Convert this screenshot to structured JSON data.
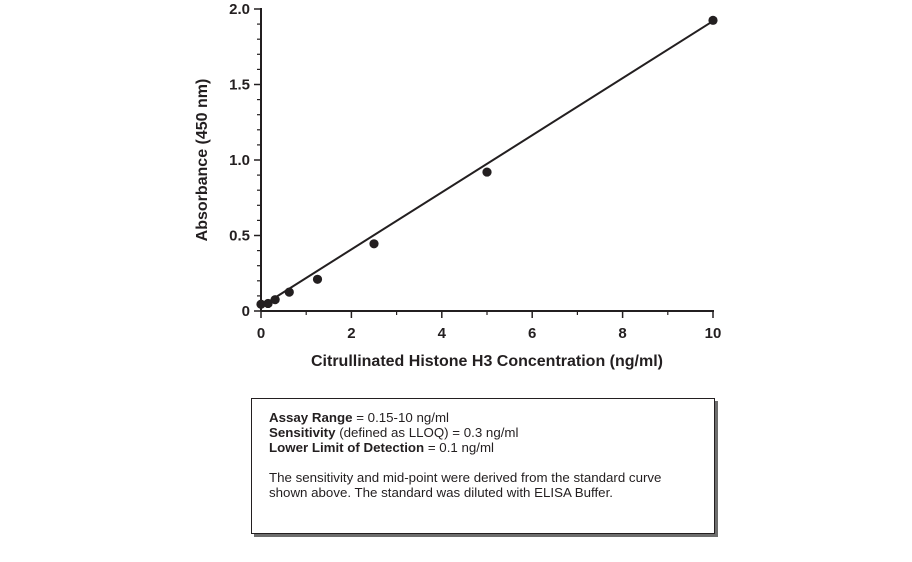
{
  "chart_data": {
    "type": "scatter",
    "xlabel": "Citrullinated Histone H3 Concentration (ng/ml)",
    "ylabel": "Absorbance (450 nm)",
    "xlim": [
      0,
      10
    ],
    "ylim": [
      0,
      2.0
    ],
    "x_ticks": [
      0,
      2,
      4,
      6,
      8,
      10
    ],
    "y_ticks": [
      0,
      0.5,
      1.0,
      1.5,
      2.0
    ],
    "x_tick_labels": [
      "0",
      "2",
      "4",
      "6",
      "8",
      "10"
    ],
    "y_tick_labels": [
      "0",
      "0.5",
      "1.0",
      "1.5",
      "2.0"
    ],
    "grid": false,
    "series": [
      {
        "x": [
          0,
          0.156,
          0.313,
          0.625,
          1.25,
          2.5,
          5,
          10
        ],
        "y": [
          0.045,
          0.05,
          0.075,
          0.125,
          0.21,
          0.445,
          0.92,
          1.925
        ]
      }
    ],
    "fit_line": {
      "x": [
        0,
        10
      ],
      "y": [
        0.03,
        1.92
      ]
    },
    "colors": {
      "marker": "#231f20",
      "line": "#231f20"
    }
  },
  "info_box": {
    "assay_range_label": "Assay Range",
    "assay_range_value": " = 0.15-10 ng/ml",
    "sensitivity_label": "Sensitivity",
    "sensitivity_value": " (defined as LLOQ) = 0.3 ng/ml",
    "lld_label": "Lower Limit of Detection",
    "lld_value": " = 0.1 ng/ml",
    "note": "The sensitivity and mid-point were derived from the standard curve shown above. The standard was diluted with ELISA Buffer."
  }
}
